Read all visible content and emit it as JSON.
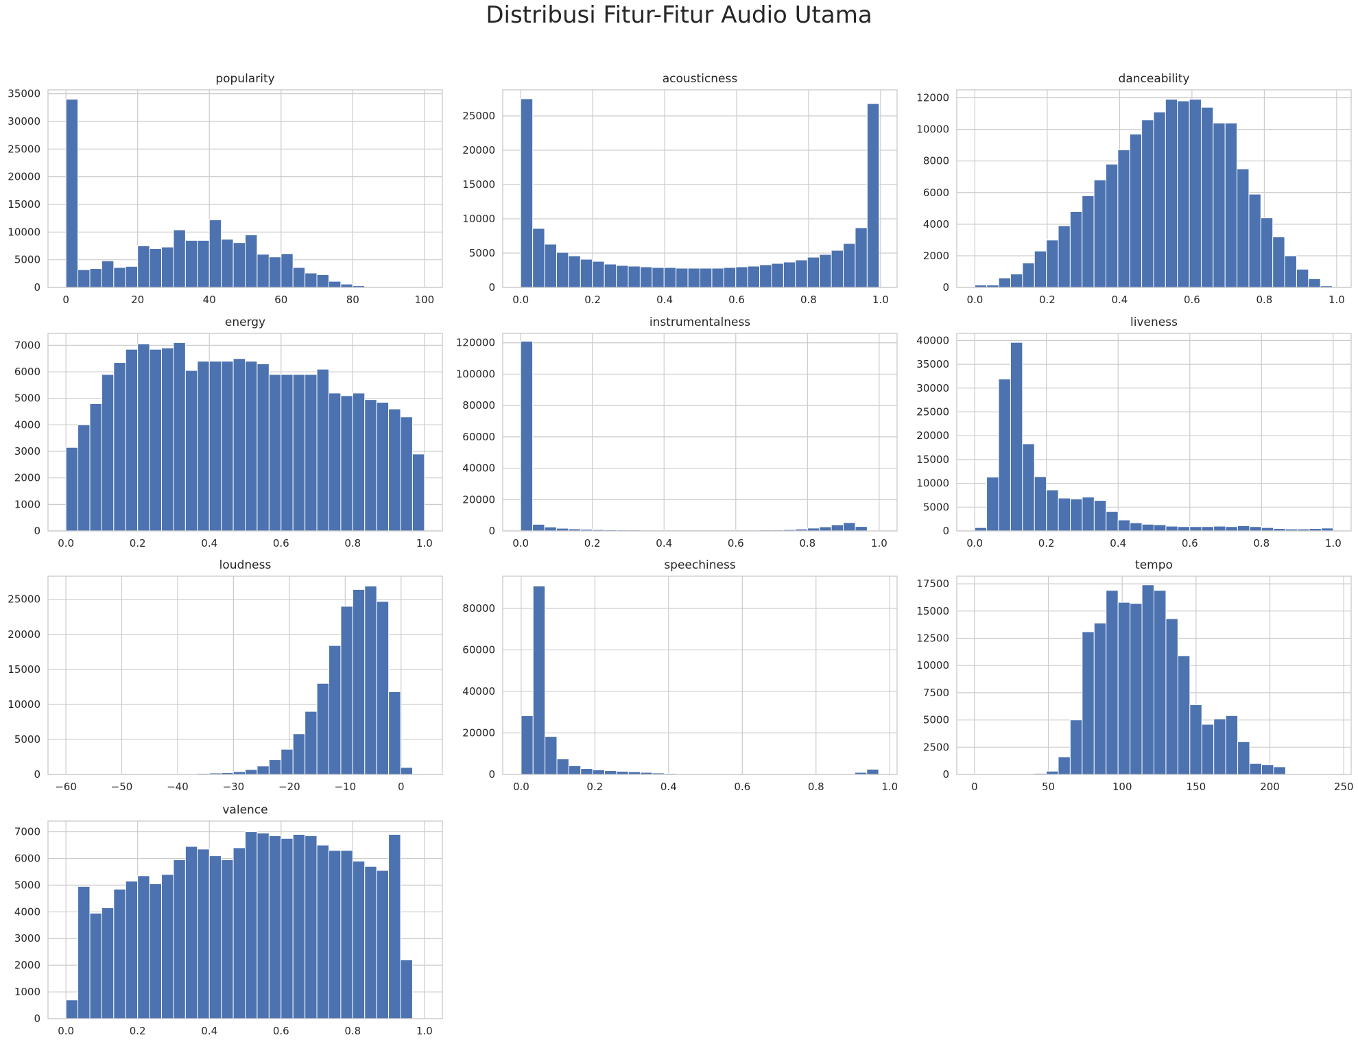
{
  "figure": {
    "title": "Distribusi Fitur-Fitur Audio Utama"
  },
  "colors": {
    "bar": "#4c72b0",
    "grid": "#cccccc",
    "background": "#ffffff"
  },
  "chart_data": [
    {
      "type": "bar",
      "title": "popularity",
      "xlabel": "",
      "ylabel": "",
      "grid": true,
      "bin_range": [
        0,
        100
      ],
      "xlim": [
        -5,
        105
      ],
      "ylim": [
        0,
        35700
      ],
      "xticks": [
        0,
        20,
        40,
        60,
        80,
        100
      ],
      "yticks": [
        0,
        5000,
        10000,
        15000,
        20000,
        25000,
        30000,
        35000
      ],
      "values": [
        34000,
        3200,
        3400,
        4800,
        3600,
        3800,
        7500,
        7000,
        7300,
        10400,
        8500,
        8500,
        12200,
        8700,
        8100,
        9500,
        6000,
        5500,
        6100,
        3600,
        2600,
        2300,
        1100,
        600,
        300,
        100,
        50,
        30,
        20,
        10
      ]
    },
    {
      "type": "bar",
      "title": "acousticness",
      "xlabel": "",
      "ylabel": "",
      "grid": true,
      "bin_range": [
        0,
        0.996
      ],
      "xlim": [
        -0.05,
        1.046
      ],
      "ylim": [
        0,
        28800
      ],
      "xticks": [
        "0.0",
        "0.2",
        "0.4",
        "0.6",
        "0.8",
        "1.0"
      ],
      "xtick_values": [
        0,
        0.2,
        0.4,
        0.6,
        0.8,
        1.0
      ],
      "yticks": [
        0,
        5000,
        10000,
        15000,
        20000,
        25000
      ],
      "values": [
        27500,
        8600,
        6300,
        5100,
        4600,
        4100,
        3800,
        3400,
        3200,
        3100,
        3000,
        2900,
        2900,
        2800,
        2800,
        2800,
        2800,
        2900,
        3000,
        3100,
        3300,
        3500,
        3700,
        4000,
        4400,
        4800,
        5400,
        6400,
        8700,
        26800
      ]
    },
    {
      "type": "bar",
      "title": "danceability",
      "xlabel": "",
      "ylabel": "",
      "grid": true,
      "bin_range": [
        0,
        0.988
      ],
      "xlim": [
        -0.05,
        1.04
      ],
      "ylim": [
        0,
        12500
      ],
      "xticks": [
        "0.0",
        "0.2",
        "0.4",
        "0.6",
        "0.8",
        "1.0"
      ],
      "xtick_values": [
        0,
        0.2,
        0.4,
        0.6,
        0.8,
        1.0
      ],
      "yticks": [
        0,
        2000,
        4000,
        6000,
        8000,
        10000,
        12000
      ],
      "values": [
        150,
        150,
        600,
        850,
        1550,
        2300,
        3000,
        3900,
        4800,
        5800,
        6800,
        7800,
        8700,
        9700,
        10600,
        11100,
        11900,
        11800,
        11900,
        11400,
        10400,
        10400,
        7500,
        5900,
        4400,
        3200,
        2000,
        1150,
        550,
        100
      ]
    },
    {
      "type": "bar",
      "title": "energy",
      "xlabel": "",
      "ylabel": "",
      "grid": true,
      "bin_range": [
        0,
        1
      ],
      "xlim": [
        -0.05,
        1.05
      ],
      "ylim": [
        0,
        7450
      ],
      "xticks": [
        "0.0",
        "0.2",
        "0.4",
        "0.6",
        "0.8",
        "1.0"
      ],
      "xtick_values": [
        0,
        0.2,
        0.4,
        0.6,
        0.8,
        1.0
      ],
      "yticks": [
        0,
        1000,
        2000,
        3000,
        4000,
        5000,
        6000,
        7000
      ],
      "values": [
        3150,
        4000,
        4800,
        5900,
        6350,
        6850,
        7050,
        6850,
        6900,
        7100,
        6050,
        6400,
        6400,
        6400,
        6500,
        6400,
        6300,
        5900,
        5900,
        5900,
        5900,
        6100,
        5200,
        5100,
        5200,
        4950,
        4850,
        4600,
        4300,
        2900
      ]
    },
    {
      "type": "bar",
      "title": "instrumentalness",
      "xlabel": "",
      "ylabel": "",
      "grid": true,
      "bin_range": [
        0,
        1
      ],
      "xlim": [
        -0.05,
        1.05
      ],
      "ylim": [
        0,
        126000
      ],
      "xticks": [
        "0.0",
        "0.2",
        "0.4",
        "0.6",
        "0.8",
        "1.0"
      ],
      "xtick_values": [
        0,
        0.2,
        0.4,
        0.6,
        0.8,
        1.0
      ],
      "yticks": [
        0,
        20000,
        40000,
        60000,
        80000,
        100000,
        120000
      ],
      "values": [
        121000,
        4200,
        2500,
        1700,
        1300,
        1000,
        800,
        700,
        600,
        600,
        500,
        500,
        500,
        500,
        500,
        500,
        500,
        500,
        500,
        500,
        600,
        600,
        800,
        1200,
        1800,
        2600,
        3900,
        5300,
        2800,
        300
      ]
    },
    {
      "type": "bar",
      "title": "liveness",
      "xlabel": "",
      "ylabel": "",
      "grid": true,
      "bin_range": [
        0,
        1
      ],
      "xlim": [
        -0.05,
        1.05
      ],
      "ylim": [
        0,
        41500
      ],
      "xticks": [
        "0.0",
        "0.2",
        "0.4",
        "0.6",
        "0.8",
        "1.0"
      ],
      "xtick_values": [
        0,
        0.2,
        0.4,
        0.6,
        0.8,
        1.0
      ],
      "yticks": [
        0,
        5000,
        10000,
        15000,
        20000,
        25000,
        30000,
        35000,
        40000
      ],
      "values": [
        700,
        11300,
        31900,
        39600,
        18300,
        11400,
        8600,
        6900,
        6700,
        7100,
        6400,
        4100,
        2300,
        1700,
        1400,
        1300,
        1000,
        900,
        900,
        900,
        1000,
        900,
        1100,
        900,
        700,
        500,
        400,
        400,
        500,
        600
      ]
    },
    {
      "type": "bar",
      "title": "loudness",
      "xlabel": "",
      "ylabel": "",
      "grid": true,
      "bin_range": [
        -60,
        4.2
      ],
      "xlim": [
        -63.2,
        7.4
      ],
      "ylim": [
        0,
        28300
      ],
      "xticks": [
        "−60",
        "−50",
        "−40",
        "−30",
        "−20",
        "−10",
        "0"
      ],
      "xtick_values": [
        -60,
        -50,
        -40,
        -30,
        -20,
        -10,
        0
      ],
      "yticks": [
        0,
        5000,
        10000,
        15000,
        20000,
        25000
      ],
      "values": [
        20,
        20,
        20,
        20,
        20,
        30,
        30,
        40,
        60,
        80,
        100,
        150,
        200,
        250,
        400,
        700,
        1200,
        2100,
        3600,
        5800,
        9000,
        13000,
        18400,
        24000,
        26400,
        26900,
        24700,
        11800,
        1000,
        50
      ]
    },
    {
      "type": "bar",
      "title": "speechiness",
      "xlabel": "",
      "ylabel": "",
      "grid": true,
      "bin_range": [
        0,
        0.97
      ],
      "xlim": [
        -0.05,
        1.02
      ],
      "ylim": [
        0,
        95500
      ],
      "xticks": [
        "0.0",
        "0.2",
        "0.4",
        "0.6",
        "0.8",
        "1.0"
      ],
      "xtick_values": [
        0,
        0.2,
        0.4,
        0.6,
        0.8,
        1.0
      ],
      "yticks": [
        0,
        20000,
        40000,
        60000,
        80000
      ],
      "values": [
        28300,
        90800,
        18300,
        7500,
        4200,
        2800,
        2200,
        1800,
        1500,
        1300,
        1000,
        700,
        500,
        300,
        200,
        100,
        100,
        100,
        100,
        100,
        100,
        100,
        100,
        100,
        100,
        100,
        100,
        200,
        1000,
        2500
      ]
    },
    {
      "type": "bar",
      "title": "tempo",
      "xlabel": "",
      "ylabel": "",
      "grid": true,
      "bin_range": [
        0,
        243
      ],
      "xlim": [
        -12,
        255
      ],
      "ylim": [
        0,
        18200
      ],
      "xticks": [
        0,
        50,
        100,
        150,
        200,
        250
      ],
      "yticks": [
        0,
        2500,
        5000,
        7500,
        10000,
        12500,
        15000,
        17500
      ],
      "values": [
        50,
        30,
        30,
        30,
        50,
        100,
        300,
        1600,
        5000,
        13100,
        13900,
        16900,
        15800,
        15700,
        17400,
        16900,
        14300,
        10900,
        6400,
        4600,
        5100,
        5400,
        3000,
        1000,
        900,
        700,
        50,
        30,
        20,
        20
      ]
    },
    {
      "type": "bar",
      "title": "valence",
      "xlabel": "",
      "ylabel": "",
      "grid": true,
      "bin_range": [
        0,
        1
      ],
      "xlim": [
        -0.05,
        1.05
      ],
      "ylim": [
        0,
        7400
      ],
      "xticks": [
        "0.0",
        "0.2",
        "0.4",
        "0.6",
        "0.8",
        "1.0"
      ],
      "xtick_values": [
        0,
        0.2,
        0.4,
        0.6,
        0.8,
        1.0
      ],
      "yticks": [
        0,
        1000,
        2000,
        3000,
        4000,
        5000,
        6000,
        7000
      ],
      "values": [
        700,
        4950,
        3950,
        4150,
        4850,
        5150,
        5350,
        5050,
        5400,
        5950,
        6450,
        6350,
        6100,
        5950,
        6400,
        7000,
        6950,
        6850,
        6750,
        6900,
        6850,
        6500,
        6300,
        6300,
        5900,
        5700,
        5550,
        6900,
        2200,
        0
      ]
    }
  ]
}
